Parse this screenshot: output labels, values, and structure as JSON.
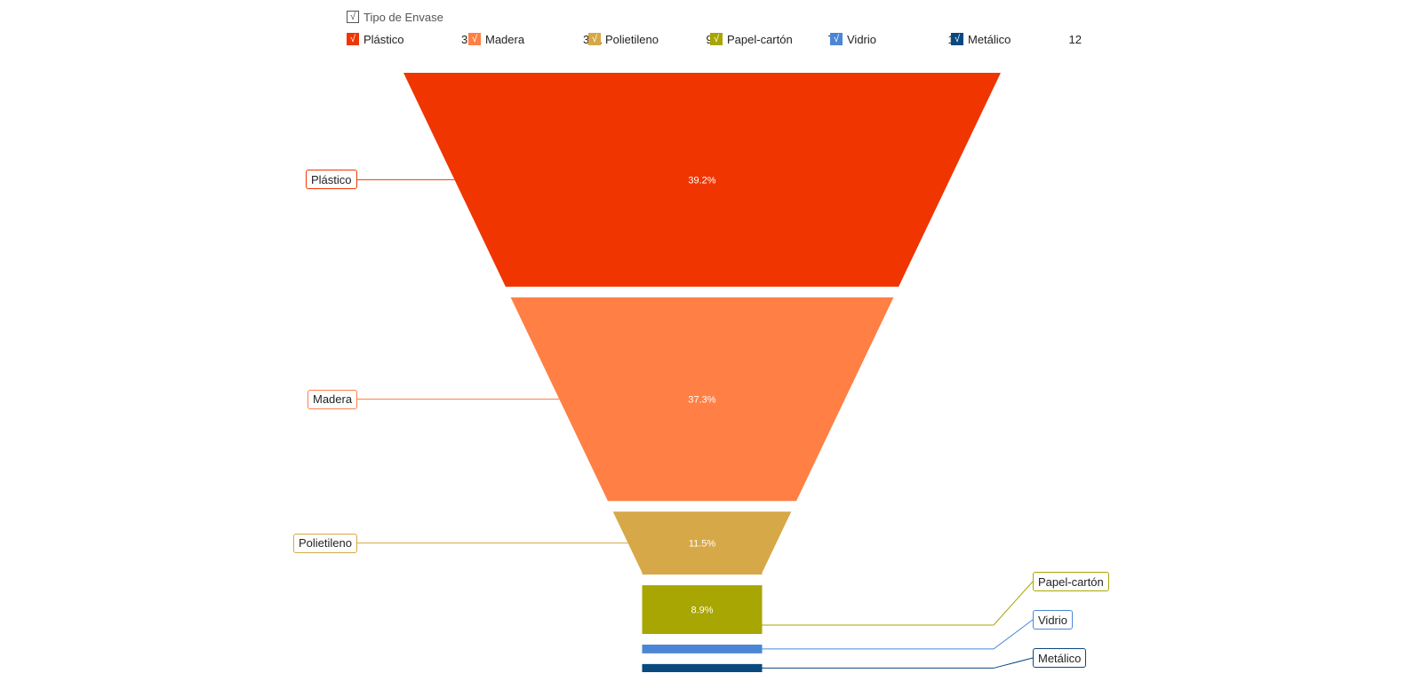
{
  "chart_data": {
    "type": "funnel",
    "legend_title": "Tipo de Envase",
    "legend_check": "√",
    "legend_position": "top",
    "series": [
      {
        "name": "Plástico",
        "value": 316,
        "percent_label": "39.2%",
        "color": "#F03501"
      },
      {
        "name": "Madera",
        "value": 301,
        "percent_label": "37.3%",
        "color": "#FF7F45"
      },
      {
        "name": "Polietileno",
        "value": 93,
        "percent_label": "11.5%",
        "color": "#D6A847"
      },
      {
        "name": "Papel-cartón",
        "value": 72,
        "percent_label": "8.9%",
        "color": "#A8A603"
      },
      {
        "name": "Vidrio",
        "value": 13,
        "percent_label": "",
        "color": "#4B86D6"
      },
      {
        "name": "Metálico",
        "value": 12,
        "percent_label": "",
        "color": "#0A4880"
      }
    ]
  }
}
